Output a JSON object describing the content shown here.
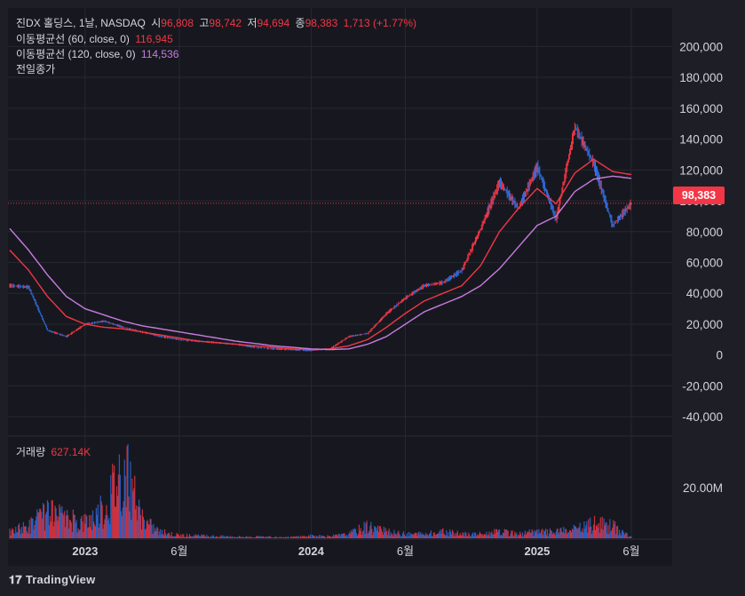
{
  "legend": {
    "symbol": "진DX 홀딩스, 1날, NASDAQ",
    "open_label": "시",
    "open": "96,808",
    "high_label": "고",
    "high": "98,742",
    "low_label": "저",
    "low": "94,694",
    "close_label": "종",
    "close": "98,383",
    "change": "1,713 (+1.77%)",
    "ma60_label": "이동평균선 (60, close, 0)",
    "ma60_value": "116,945",
    "ma120_label": "이동평균선 (120, close, 0)",
    "ma120_value": "114,536",
    "prev_close_label": "전일종가",
    "volume_label": "거래량",
    "volume_value": "627.14K"
  },
  "price_tag": "98,383",
  "logo": {
    "mark": "𝟏𝟕",
    "text": "TradingView"
  },
  "colors": {
    "background": "#17181f",
    "up": "#f23645",
    "down": "#2f6de1",
    "ma60": "#f23645",
    "ma120": "#c77ce0",
    "grid": "#262830"
  },
  "chart_data": [
    {
      "type": "line",
      "title": "",
      "xlabel": "",
      "ylabel": "",
      "ylim": [
        -52000,
        225000
      ],
      "y_ticks": [
        "200,000",
        "180,000",
        "160,000",
        "140,000",
        "120,000",
        "100,000",
        "80,000",
        "60,000",
        "40,000",
        "20,000",
        "0",
        "-20,000",
        "-40,000"
      ],
      "x_ticks": [
        "2023",
        "6월",
        "2024",
        "6월",
        "2025",
        "6월"
      ],
      "series": [
        {
          "role": "price",
          "x": [
            "2022-09",
            "2022-10",
            "2022-11",
            "2022-12",
            "2023-01",
            "2023-02",
            "2023-03",
            "2023-04",
            "2023-05",
            "2023-06",
            "2023-07",
            "2023-08",
            "2023-09",
            "2023-10",
            "2023-11",
            "2023-12",
            "2024-01",
            "2024-02",
            "2024-03",
            "2024-04",
            "2024-05",
            "2024-06",
            "2024-07",
            "2024-08",
            "2024-09",
            "2024-10",
            "2024-11",
            "2024-12",
            "2025-01",
            "2025-02",
            "2025-03",
            "2025-04",
            "2025-05",
            "2025-06"
          ],
          "values": [
            45000,
            44000,
            16000,
            12000,
            20000,
            22000,
            18000,
            15000,
            12000,
            10000,
            9000,
            8000,
            7000,
            5000,
            4000,
            3500,
            3000,
            4000,
            12000,
            14000,
            27000,
            37000,
            45000,
            47000,
            55000,
            82000,
            112000,
            95000,
            122000,
            88000,
            148000,
            124000,
            84000,
            98383
          ]
        },
        {
          "name": "이동평균선 (60, close, 0)",
          "x": [
            "2022-09",
            "2022-10",
            "2022-11",
            "2022-12",
            "2023-01",
            "2023-02",
            "2023-03",
            "2023-04",
            "2023-05",
            "2023-06",
            "2023-07",
            "2023-08",
            "2023-09",
            "2023-10",
            "2023-11",
            "2023-12",
            "2024-01",
            "2024-02",
            "2024-03",
            "2024-04",
            "2024-05",
            "2024-06",
            "2024-07",
            "2024-08",
            "2024-09",
            "2024-10",
            "2024-11",
            "2024-12",
            "2025-01",
            "2025-02",
            "2025-03",
            "2025-04",
            "2025-05",
            "2025-06"
          ],
          "values": [
            68000,
            55000,
            38000,
            25000,
            20000,
            18000,
            17000,
            15000,
            13000,
            11000,
            9000,
            8000,
            7000,
            6000,
            5000,
            4000,
            3500,
            4000,
            6000,
            10000,
            18000,
            27000,
            35000,
            40000,
            45000,
            58000,
            80000,
            95000,
            108000,
            98000,
            118000,
            127000,
            119000,
            116945
          ]
        },
        {
          "name": "이동평균선 (120, close, 0)",
          "x": [
            "2022-09",
            "2022-10",
            "2022-11",
            "2022-12",
            "2023-01",
            "2023-02",
            "2023-03",
            "2023-04",
            "2023-05",
            "2023-06",
            "2023-07",
            "2023-08",
            "2023-09",
            "2023-10",
            "2023-11",
            "2023-12",
            "2024-01",
            "2024-02",
            "2024-03",
            "2024-04",
            "2024-05",
            "2024-06",
            "2024-07",
            "2024-08",
            "2024-09",
            "2024-10",
            "2024-11",
            "2024-12",
            "2025-01",
            "2025-02",
            "2025-03",
            "2025-04",
            "2025-05",
            "2025-06"
          ],
          "values": [
            82000,
            68000,
            52000,
            38000,
            30000,
            26000,
            22000,
            19000,
            17000,
            15000,
            13000,
            11000,
            9000,
            7500,
            6000,
            5000,
            4000,
            3500,
            4000,
            7000,
            12000,
            20000,
            28000,
            33000,
            38000,
            45000,
            56000,
            70000,
            84000,
            90000,
            106000,
            114000,
            116000,
            114536
          ]
        }
      ]
    },
    {
      "type": "bar",
      "title": "",
      "y_ticks": [
        "20.00M"
      ],
      "ylim": [
        0,
        40000000
      ],
      "categories": [
        "2022-09",
        "2022-10",
        "2022-11",
        "2022-12",
        "2023-01",
        "2023-02",
        "2023-03",
        "2023-04",
        "2023-05",
        "2023-06",
        "2023-07",
        "2023-08",
        "2023-09",
        "2023-10",
        "2023-11",
        "2023-12",
        "2024-01",
        "2024-02",
        "2024-03",
        "2024-04",
        "2024-05",
        "2024-06",
        "2024-07",
        "2024-08",
        "2024-09",
        "2024-10",
        "2024-11",
        "2024-12",
        "2025-01",
        "2025-02",
        "2025-03",
        "2025-04",
        "2025-05",
        "2025-06"
      ],
      "series": [
        {
          "name": "거래량",
          "values": [
            3000000,
            6000000,
            12000000,
            9000000,
            8000000,
            14000000,
            36000000,
            9000000,
            3000000,
            1500000,
            1200000,
            1000000,
            800000,
            700000,
            600000,
            600000,
            1200000,
            900000,
            2000000,
            6000000,
            3000000,
            2000000,
            2000000,
            3000000,
            2000000,
            2000000,
            3000000,
            2000000,
            3000000,
            3000000,
            4000000,
            7000000,
            6000000,
            627140
          ]
        }
      ]
    }
  ]
}
